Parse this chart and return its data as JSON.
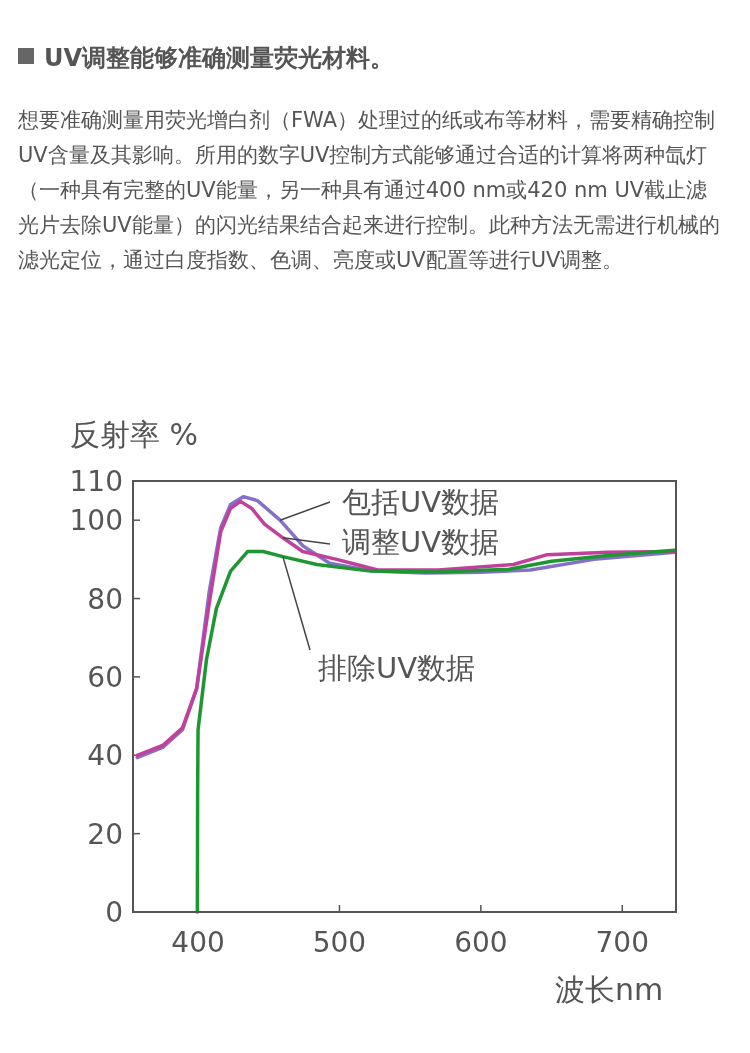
{
  "chart_data": {
    "type": "line",
    "title": "UV调整能够准确测量荧光材料。",
    "subtitle": "想要准确测量用荧光增白剂（FWA）处理过的纸或布等材料，需要精确控制UV含量及其影响。所用的数字UV控制方式能够通过合适的计算将两种氙灯（一种具有完整的UV能量，另一种具有通过400 nm或420 nm UV截止滤光片去除UV能量）的闪光结果结合起来进行控制。此种方法无需进行机械的滤光定位，通过白度指数、色调、亮度或UV配置等进行UV调整。",
    "xlabel": "波长nm",
    "ylabel": "反射率 %",
    "xlim": [
      354,
      738
    ],
    "ylim": [
      0,
      110
    ],
    "xticks": [
      400,
      500,
      600,
      700
    ],
    "yticks": [
      0,
      20,
      40,
      60,
      80,
      100,
      110
    ],
    "grid": false,
    "series": [
      {
        "name": "包括UV数据",
        "color": "#8470c8",
        "x": [
          357,
          375,
          389,
          399,
          408,
          416,
          423,
          432,
          442,
          458,
          474,
          493,
          524,
          560,
          600,
          635,
          680,
          737
        ],
        "values": [
          39.4,
          42,
          46.5,
          57,
          82,
          98,
          104,
          106,
          105,
          100,
          93.5,
          89,
          87,
          86.5,
          86.7,
          87.3,
          90,
          91.8
        ]
      },
      {
        "name": "调整UV数据",
        "color": "#c0409c",
        "x": [
          357,
          375,
          389,
          399,
          408,
          416,
          423,
          430,
          438,
          447,
          460,
          474,
          498,
          512,
          527,
          570,
          623,
          647,
          690,
          737
        ],
        "values": [
          40,
          42.5,
          47,
          57,
          79,
          97,
          103,
          104.8,
          103,
          99,
          95.5,
          92,
          90,
          88.7,
          87.3,
          87.3,
          88.7,
          91.2,
          91.8,
          92
        ]
      },
      {
        "name": "排除UV数据",
        "color": "#1e9632",
        "x": [
          399.5,
          399.7,
          400,
          406,
          413,
          423,
          435,
          446,
          460,
          484,
          522,
          570,
          620,
          650,
          690,
          737
        ],
        "values": [
          0,
          30,
          46.5,
          64.5,
          77.5,
          87,
          92,
          92,
          90.7,
          88.7,
          87,
          86.8,
          87.5,
          89.5,
          91,
          92.3
        ]
      }
    ]
  }
}
